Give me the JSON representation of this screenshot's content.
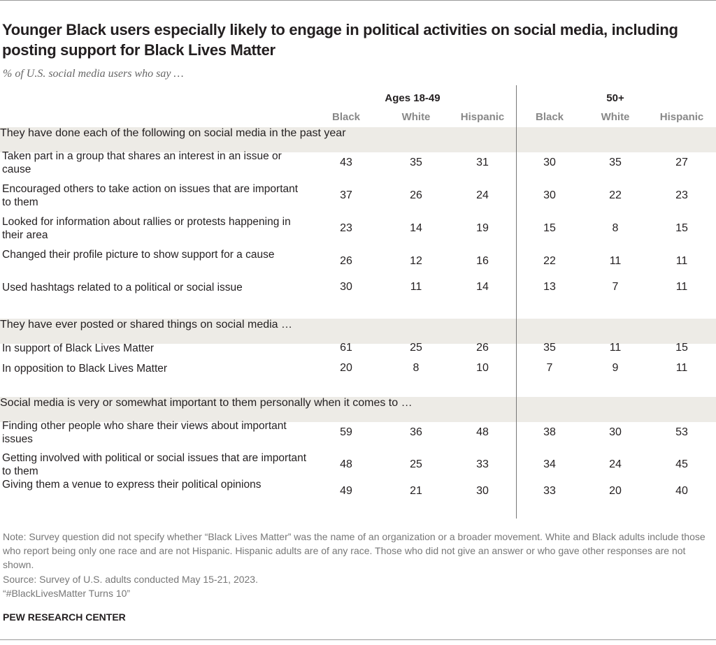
{
  "title": "Younger Black users especially likely to engage in political activities on social media, including posting support for Black Lives Matter",
  "subtitle": "% of U.S. social media users who say …",
  "chart_data": {
    "type": "table",
    "column_groups": [
      {
        "label": "Ages 18-49",
        "columns": [
          "Black",
          "White",
          "Hispanic"
        ]
      },
      {
        "label": "50+",
        "columns": [
          "Black",
          "White",
          "Hispanic"
        ]
      }
    ],
    "sections": [
      {
        "header": "They have done each of the following on social media in the past year",
        "rows": [
          {
            "label": "Taken part in a group that shares an interest in an issue or cause",
            "values": [
              43,
              35,
              31,
              30,
              35,
              27
            ]
          },
          {
            "label": "Encouraged others to take action on issues that are important to them",
            "values": [
              37,
              26,
              24,
              30,
              22,
              23
            ]
          },
          {
            "label": "Looked for information about rallies or protests happening in their area",
            "values": [
              23,
              14,
              19,
              15,
              8,
              15
            ]
          },
          {
            "label": "Changed their profile picture to show support for a cause",
            "values": [
              26,
              12,
              16,
              22,
              11,
              11
            ]
          },
          {
            "label": "Used hashtags related to a political or social issue",
            "values": [
              30,
              11,
              14,
              13,
              7,
              11
            ]
          }
        ]
      },
      {
        "header": "They have ever posted or shared things on social media …",
        "rows": [
          {
            "label": "In support of Black Lives Matter",
            "values": [
              61,
              25,
              26,
              35,
              11,
              15
            ]
          },
          {
            "label": "In opposition to Black Lives Matter",
            "values": [
              20,
              8,
              10,
              7,
              9,
              11
            ]
          }
        ]
      },
      {
        "header": "Social media is very or somewhat important to them personally when it comes to …",
        "rows": [
          {
            "label": "Finding other people who share their views about important issues",
            "values": [
              59,
              36,
              48,
              38,
              30,
              53
            ]
          },
          {
            "label": "Getting involved with political or social issues that are important to them",
            "values": [
              48,
              25,
              33,
              34,
              24,
              45
            ]
          },
          {
            "label": "Giving them a venue to express their political opinions",
            "values": [
              49,
              21,
              30,
              33,
              20,
              40
            ]
          }
        ]
      }
    ],
    "band_color": "#edebe6"
  },
  "note": "Note: Survey question did not specify whether “Black Lives Matter” was the name of an organization or a broader movement. White and Black adults include those who report being only one race and are not Hispanic. Hispanic adults are of any race. Those who did not give an answer or who gave other responses are not shown.",
  "source": "Source: Survey of U.S. adults conducted May 15-21, 2023.",
  "report": "“#BlackLivesMatter Turns 10”",
  "brand": "PEW RESEARCH CENTER"
}
